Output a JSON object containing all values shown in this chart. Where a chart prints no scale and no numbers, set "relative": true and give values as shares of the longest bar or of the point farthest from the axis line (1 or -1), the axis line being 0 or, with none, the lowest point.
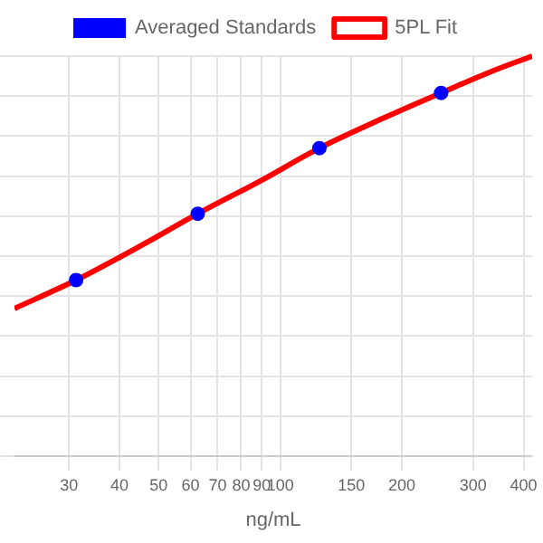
{
  "chart_data": {
    "type": "scatter",
    "xlabel": "ng/mL",
    "log": "x",
    "xlim": [
      22,
      420
    ],
    "xticks": [
      30,
      40,
      50,
      60,
      70,
      80,
      90,
      100,
      150,
      200,
      300,
      400
    ],
    "relative": true,
    "grid": true,
    "legend": "top",
    "series": [
      {
        "name": "Averaged Standards",
        "type": "scatter",
        "color": "#0000ff",
        "marker": "circle",
        "x": [
          31.25,
          62.5,
          125,
          250
        ],
        "values": [
          0.44,
          0.606,
          0.77,
          0.908
        ]
      },
      {
        "name": "5PL Fit",
        "type": "line",
        "color": "#ff0000",
        "marker": "none",
        "line_style": "solid",
        "x": [
          22,
          31.25,
          45,
          62.5,
          90,
          125,
          180,
          250,
          330,
          420
        ],
        "values": [
          0.369,
          0.44,
          0.525,
          0.606,
          0.69,
          0.77,
          0.845,
          0.908,
          0.96,
          1.0
        ]
      }
    ]
  }
}
